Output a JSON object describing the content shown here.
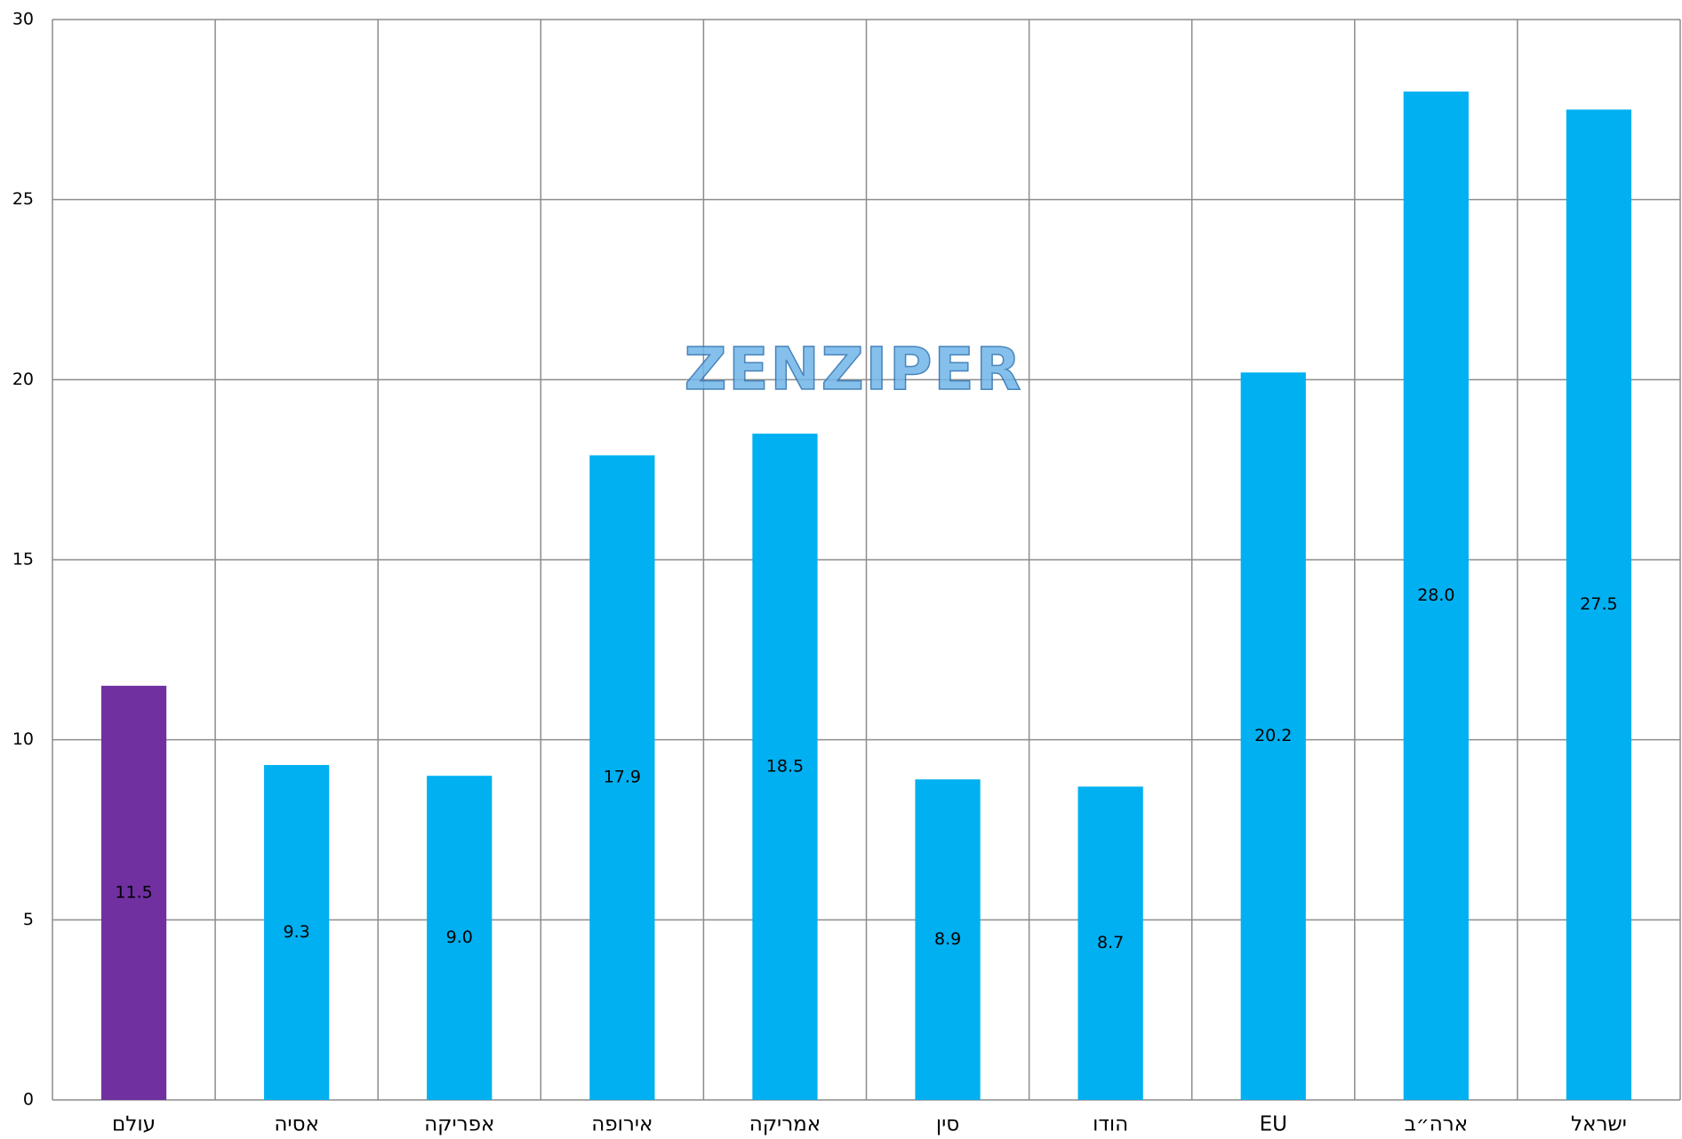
{
  "chart_data": {
    "type": "bar",
    "watermark": "ZENZIPER",
    "categories": [
      "עולם",
      "אסיה",
      "אפריקה",
      "אירופה",
      "אמריקה",
      "סין",
      "הודו",
      "EU",
      "ארה״ב",
      "ישראל"
    ],
    "values": [
      11.5,
      9.3,
      9.0,
      17.9,
      18.5,
      8.9,
      8.7,
      20.2,
      28.0,
      27.5
    ],
    "value_labels": [
      "11.5",
      "9.3",
      "9.0",
      "17.9",
      "18.5",
      "8.9",
      "8.7",
      "20.2",
      "28.0",
      "27.5"
    ],
    "colors": [
      "#7030a0",
      "#00b0f0",
      "#00b0f0",
      "#00b0f0",
      "#00b0f0",
      "#00b0f0",
      "#00b0f0",
      "#00b0f0",
      "#00b0f0",
      "#00b0f0"
    ],
    "ylim": [
      0,
      30
    ],
    "yticks": [
      0,
      5,
      10,
      15,
      20,
      25,
      30
    ],
    "grid": true
  }
}
